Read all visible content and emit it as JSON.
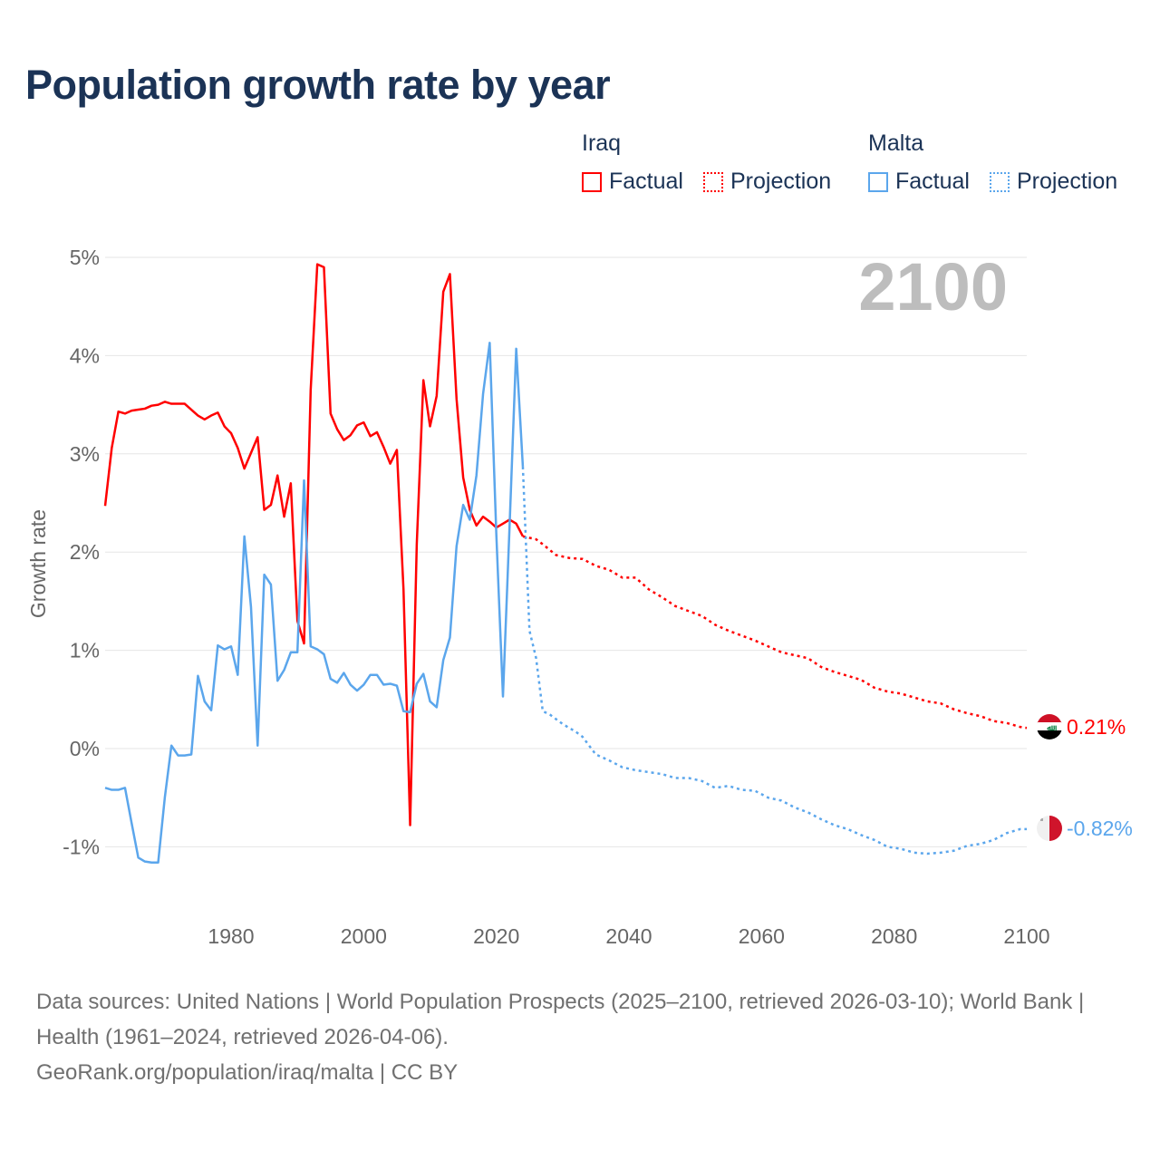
{
  "title": "Population growth rate by year",
  "legend": {
    "groups": [
      {
        "name": "Iraq",
        "factual": "Factual",
        "projection": "Projection",
        "color": "#ff0000"
      },
      {
        "name": "Malta",
        "factual": "Factual",
        "projection": "Projection",
        "color": "#5ba6ec"
      }
    ]
  },
  "footer": {
    "sources": "Data sources: United Nations | World Population Prospects (2025–2100, retrieved 2026-03-10); World Bank | Health (1961–2024, retrieved 2026-04-06).",
    "link": "GeoRank.org/population/iraq/malta | CC BY"
  },
  "chart_data": {
    "type": "line",
    "title": "Population growth rate by year",
    "xlabel": "",
    "ylabel": "Growth rate",
    "year_label": "2100",
    "xlim": [
      1961,
      2100
    ],
    "ylim": [
      -1.6,
      5
    ],
    "x_ticks": [
      1980,
      2000,
      2020,
      2040,
      2060,
      2080,
      2100
    ],
    "y_ticks": [
      {
        "v": 5,
        "label": "5%"
      },
      {
        "v": 4,
        "label": "4%"
      },
      {
        "v": 3,
        "label": "3%"
      },
      {
        "v": 2,
        "label": "2%"
      },
      {
        "v": 1,
        "label": "1%"
      },
      {
        "v": 0,
        "label": "0%"
      },
      {
        "v": -1,
        "label": "-1%"
      }
    ],
    "grid": true,
    "series": [
      {
        "name": "Iraq",
        "color": "#ff0000",
        "end_label": "0.21%",
        "factual": {
          "start_year": 1961,
          "values": [
            2.47,
            3.06,
            3.43,
            3.41,
            3.44,
            3.45,
            3.46,
            3.49,
            3.5,
            3.53,
            3.51,
            3.51,
            3.51,
            3.45,
            3.39,
            3.35,
            3.39,
            3.42,
            3.28,
            3.21,
            3.06,
            2.85,
            3.01,
            3.17,
            2.43,
            2.48,
            2.78,
            2.36,
            2.7,
            1.3,
            1.07,
            3.65,
            4.93,
            4.9,
            3.41,
            3.25,
            3.14,
            3.19,
            3.29,
            3.32,
            3.18,
            3.22,
            3.07,
            2.9,
            3.04,
            1.62,
            -0.78,
            2.08,
            3.75,
            3.28,
            3.59,
            4.65,
            4.83,
            3.56,
            2.76,
            2.43,
            2.27,
            2.36,
            2.31,
            2.25,
            2.29,
            2.33,
            2.29,
            2.16
          ]
        },
        "projection": {
          "years": [
            2024,
            2026,
            2027,
            2029,
            2031,
            2033,
            2035,
            2037,
            2039,
            2041,
            2043,
            2045,
            2047,
            2049,
            2051,
            2053,
            2055,
            2057,
            2059,
            2061,
            2063,
            2065,
            2067,
            2069,
            2071,
            2073,
            2075,
            2077,
            2079,
            2081,
            2083,
            2085,
            2087,
            2089,
            2091,
            2093,
            2095,
            2097,
            2099,
            2100
          ],
          "values": [
            2.16,
            2.13,
            2.08,
            1.97,
            1.94,
            1.93,
            1.86,
            1.82,
            1.74,
            1.74,
            1.62,
            1.54,
            1.45,
            1.4,
            1.35,
            1.26,
            1.2,
            1.15,
            1.1,
            1.04,
            0.98,
            0.95,
            0.92,
            0.83,
            0.78,
            0.74,
            0.7,
            0.62,
            0.58,
            0.56,
            0.52,
            0.48,
            0.46,
            0.4,
            0.36,
            0.33,
            0.28,
            0.26,
            0.22,
            0.21
          ]
        }
      },
      {
        "name": "Malta",
        "color": "#5ba6ec",
        "end_label": "-0.82%",
        "factual": {
          "start_year": 1961,
          "values": [
            -0.4,
            -0.42,
            -0.42,
            -0.4,
            -0.76,
            -1.11,
            -1.15,
            -1.16,
            -1.16,
            -0.5,
            0.03,
            -0.07,
            -0.07,
            -0.06,
            0.74,
            0.48,
            0.39,
            1.05,
            1.01,
            1.04,
            0.75,
            2.16,
            1.44,
            0.03,
            1.77,
            1.67,
            0.69,
            0.8,
            0.98,
            0.98,
            2.73,
            1.04,
            1.01,
            0.96,
            0.71,
            0.67,
            0.77,
            0.65,
            0.59,
            0.65,
            0.75,
            0.75,
            0.65,
            0.66,
            0.64,
            0.38,
            0.37,
            0.66,
            0.76,
            0.48,
            0.42,
            0.9,
            1.13,
            2.06,
            2.48,
            2.33,
            2.78,
            3.61,
            4.13,
            2.18,
            0.53,
            2.27,
            4.07,
            2.87
          ]
        },
        "projection": {
          "years": [
            2024,
            2025,
            2026,
            2027,
            2028,
            2030,
            2032,
            2033,
            2035,
            2037,
            2039,
            2041,
            2043,
            2045,
            2047,
            2049,
            2051,
            2053,
            2055,
            2057,
            2059,
            2061,
            2063,
            2065,
            2067,
            2069,
            2071,
            2073,
            2075,
            2077,
            2079,
            2081,
            2083,
            2085,
            2087,
            2089,
            2091,
            2093,
            2095,
            2097,
            2099,
            2100
          ],
          "values": [
            2.87,
            1.2,
            0.92,
            0.38,
            0.35,
            0.25,
            0.17,
            0.12,
            -0.06,
            -0.12,
            -0.19,
            -0.22,
            -0.24,
            -0.26,
            -0.3,
            -0.3,
            -0.33,
            -0.4,
            -0.38,
            -0.42,
            -0.43,
            -0.5,
            -0.53,
            -0.6,
            -0.65,
            -0.72,
            -0.78,
            -0.82,
            -0.88,
            -0.93,
            -1.0,
            -1.02,
            -1.06,
            -1.07,
            -1.06,
            -1.04,
            -0.99,
            -0.97,
            -0.93,
            -0.86,
            -0.82,
            -0.82
          ]
        }
      }
    ]
  }
}
